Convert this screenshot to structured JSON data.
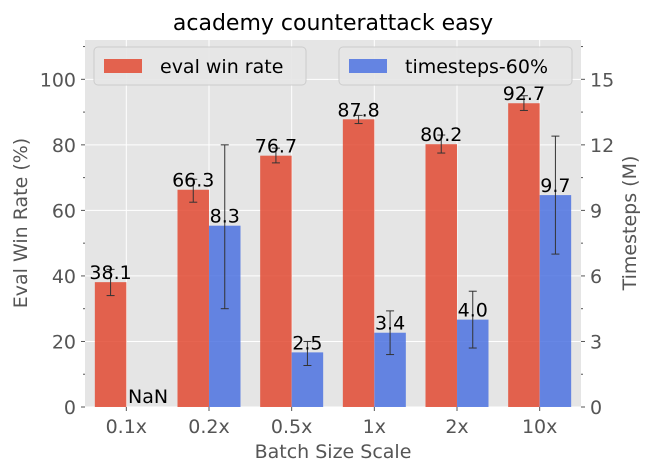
{
  "chart_data": {
    "type": "bar",
    "title": "academy counterattack easy",
    "xlabel": "Batch Size Scale",
    "ylabel": "Eval Win Rate (%)",
    "y2label": "Timesteps (M)",
    "categories": [
      "0.1x",
      "0.2x",
      "0.5x",
      "1x",
      "2x",
      "10x"
    ],
    "ylim": [
      0,
      112
    ],
    "y2lim": [
      0,
      16.8
    ],
    "yticks": [
      0,
      20,
      40,
      60,
      80,
      100
    ],
    "y2ticks": [
      0,
      3,
      6,
      9,
      12,
      15
    ],
    "grid": true,
    "legend": [
      {
        "label": "eval win rate",
        "placement": "top-left"
      },
      {
        "label": "timesteps-60%",
        "placement": "top-right"
      }
    ],
    "series": [
      {
        "name": "eval win rate",
        "axis": "left",
        "color": "#E24A33",
        "values": [
          38.1,
          66.3,
          76.7,
          87.8,
          80.2,
          92.7
        ],
        "err_low": [
          34.0,
          62.5,
          74.5,
          86.5,
          77.5,
          90.5
        ],
        "err_high": [
          42.0,
          69.5,
          79.0,
          89.0,
          83.0,
          95.0
        ],
        "labels": [
          "38.1",
          "66.3",
          "76.7",
          "87.8",
          "80.2",
          "92.7"
        ]
      },
      {
        "name": "timesteps-60%",
        "axis": "right",
        "color": "#4C72E0",
        "values": [
          null,
          8.3,
          2.5,
          3.4,
          4.0,
          9.7
        ],
        "err_low": [
          null,
          4.5,
          1.9,
          2.4,
          2.7,
          7.0
        ],
        "err_high": [
          null,
          12.0,
          3.0,
          4.4,
          5.3,
          12.4
        ],
        "labels": [
          "NaN",
          "8.3",
          "2.5",
          "3.4",
          "4.0",
          "9.7"
        ]
      }
    ]
  }
}
